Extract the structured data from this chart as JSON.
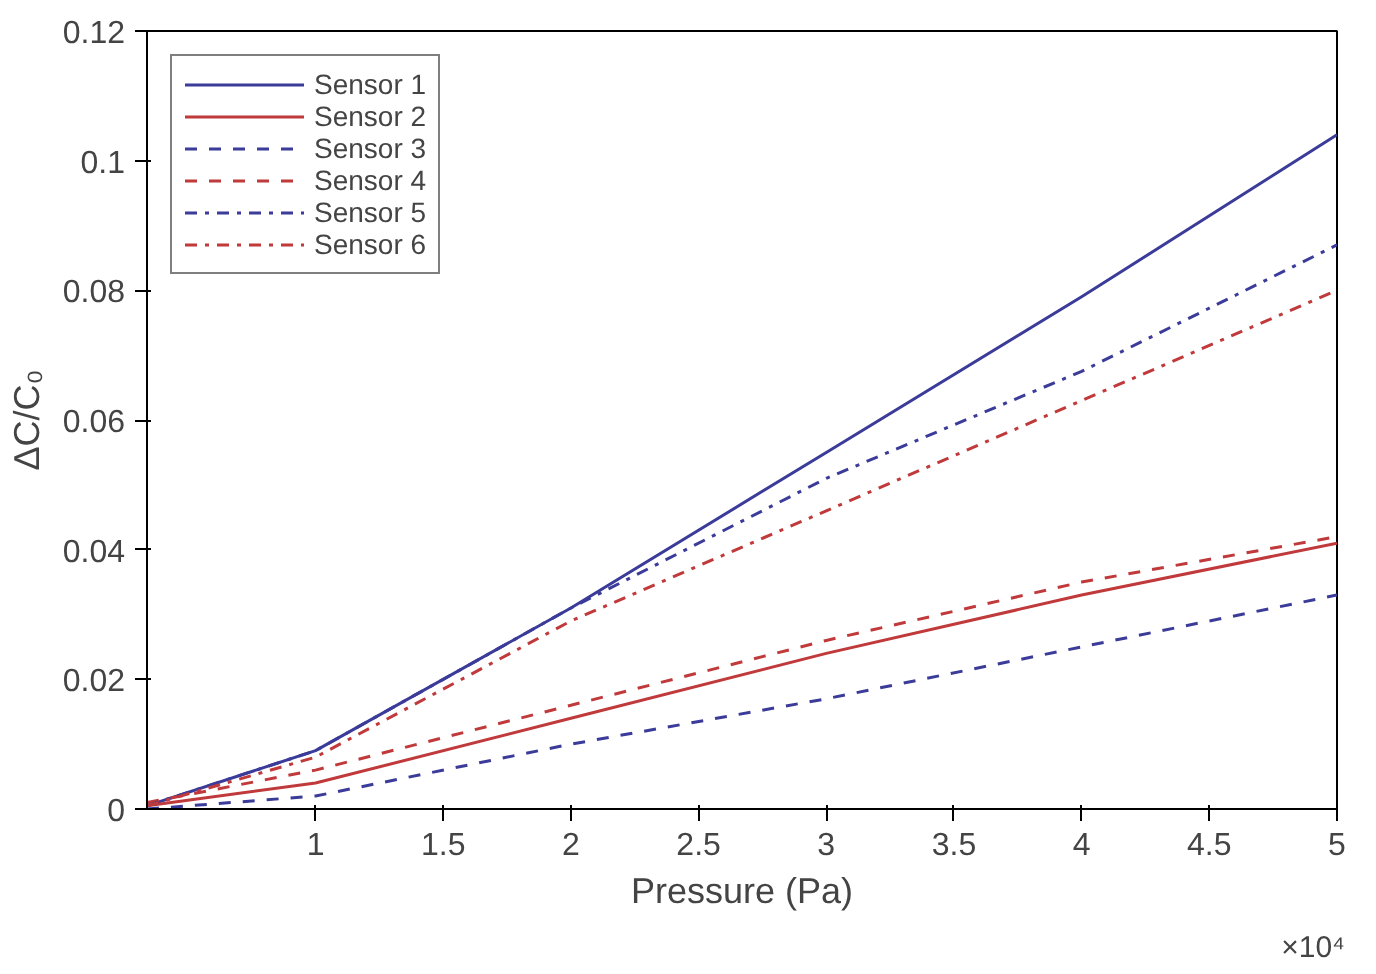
{
  "chart_data": {
    "type": "line",
    "xlabel": "Pressure (Pa)",
    "ylabel": "ΔC/C₀",
    "annotations": [
      "×10⁴"
    ],
    "xlim": [
      0.34,
      5
    ],
    "ylim": [
      0,
      0.12
    ],
    "xticks": [
      1,
      1.5,
      2,
      2.5,
      3,
      3.5,
      4,
      4.5,
      5
    ],
    "yticks": [
      0,
      0.02,
      0.04,
      0.06,
      0.08,
      0.1,
      0.12
    ],
    "grid": false,
    "legend": "top left",
    "x": [
      0.34,
      1,
      2,
      3,
      4,
      5
    ],
    "series": [
      {
        "name": "Sensor 1",
        "color": "#3b3b9a",
        "line_style": "solid",
        "values": [
          0.0005,
          0.009,
          0.031,
          0.055,
          0.079,
          0.104
        ]
      },
      {
        "name": "Sensor 2",
        "color": "#c0393b",
        "line_style": "solid",
        "values": [
          0.0005,
          0.004,
          0.014,
          0.024,
          0.033,
          0.041
        ]
      },
      {
        "name": "Sensor 3",
        "color": "#3b3b9a",
        "line_style": "dashed",
        "values": [
          0.0,
          0.002,
          0.01,
          0.017,
          0.025,
          0.033
        ]
      },
      {
        "name": "Sensor 4",
        "color": "#c0393b",
        "line_style": "dashed",
        "values": [
          0.001,
          0.006,
          0.016,
          0.026,
          0.035,
          0.042
        ]
      },
      {
        "name": "Sensor 5",
        "color": "#3b3b9a",
        "line_style": "dashdot",
        "values": [
          0.0005,
          0.009,
          0.031,
          0.051,
          0.0675,
          0.087
        ]
      },
      {
        "name": "Sensor 6",
        "color": "#c0393b",
        "line_style": "dashdot",
        "values": [
          0.0005,
          0.008,
          0.029,
          0.046,
          0.063,
          0.08
        ]
      }
    ]
  }
}
